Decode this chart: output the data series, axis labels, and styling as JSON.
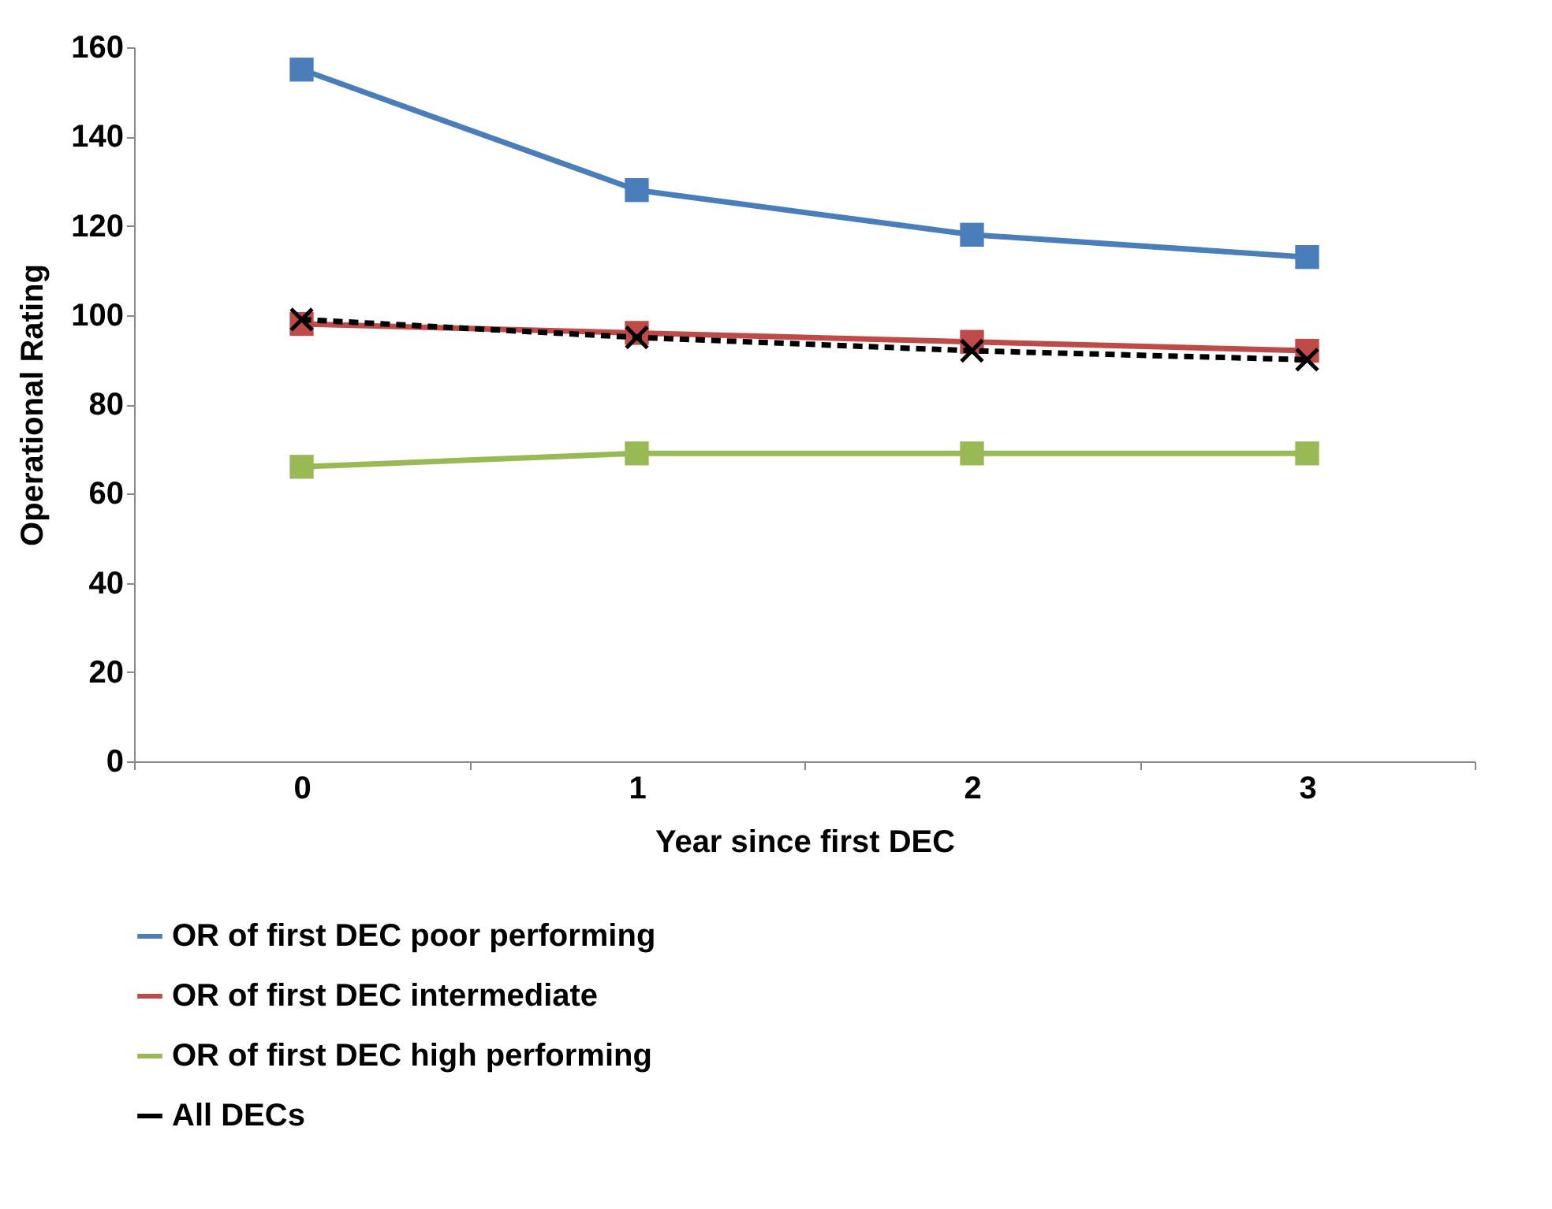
{
  "chart_data": {
    "type": "line",
    "xlabel": "Year since first DEC",
    "ylabel": "Operational Rating",
    "categories": [
      "0",
      "1",
      "2",
      "3"
    ],
    "ylim": [
      0,
      160
    ],
    "yticks": [
      0,
      20,
      40,
      60,
      80,
      100,
      120,
      140,
      160
    ],
    "legend": "bottom",
    "series": [
      {
        "name": "OR of first DEC poor performing",
        "color": "#4a7ebb",
        "values": [
          155,
          128,
          118,
          113
        ],
        "marker": "square",
        "line_style": "solid"
      },
      {
        "name": "OR of first DEC intermediate",
        "color": "#be4b48",
        "values": [
          98,
          96,
          94,
          92
        ],
        "marker": "square",
        "line_style": "solid"
      },
      {
        "name": "OR of first DEC high performing",
        "color": "#98b954",
        "values": [
          66,
          69,
          69,
          69
        ],
        "marker": "square",
        "line_style": "solid"
      },
      {
        "name": "All DECs",
        "color": "#000000",
        "values": [
          99,
          95,
          92,
          90
        ],
        "marker": "cross",
        "line_style": "dashed"
      }
    ]
  }
}
